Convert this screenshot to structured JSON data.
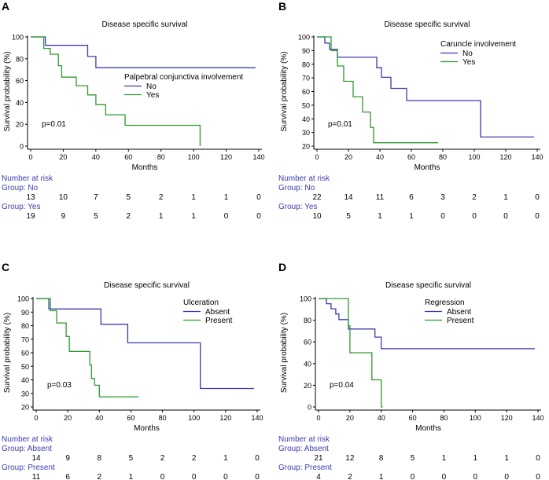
{
  "colors": {
    "group1": "#3b3bb0",
    "group2": "#2e9a2e",
    "risk_label": "#3b3bb0",
    "axis": "#000000"
  },
  "chart_data": [
    {
      "panel_label": "A",
      "type": "line",
      "title": "Disease specific survival",
      "xlabel": "Months",
      "ylabel": "Survival probability (%)",
      "xlim": [
        0,
        140
      ],
      "ylim": [
        0,
        100
      ],
      "x_ticks": [
        "0",
        "20",
        "40",
        "60",
        "80",
        "100",
        "120",
        "140"
      ],
      "y_ticks": [
        "0",
        "20",
        "40",
        "60",
        "80",
        "100"
      ],
      "legend_title": "Palpebral conjunctiva involvement",
      "p_value": "p=0.01",
      "series": [
        {
          "name": "No",
          "color": "#3b3bb0",
          "x": [
            0,
            9,
            9,
            35,
            35,
            40,
            40,
            138
          ],
          "y": [
            100,
            100,
            92.3,
            92.3,
            82.1,
            82.1,
            71.8,
            71.8
          ]
        },
        {
          "name": "Yes",
          "color": "#2e9a2e",
          "x": [
            0,
            8,
            8,
            12,
            12,
            17,
            17,
            19,
            19,
            28,
            28,
            35,
            35,
            40,
            40,
            46,
            46,
            58,
            58,
            104,
            104
          ],
          "y": [
            100,
            100,
            89.5,
            89.5,
            84.2,
            84.2,
            73.7,
            73.7,
            63.2,
            63.2,
            55.3,
            55.3,
            46.9,
            46.9,
            38.0,
            38.0,
            28.7,
            28.7,
            19.1,
            19.1,
            0
          ]
        }
      ],
      "risk_table": {
        "header": "Number at risk",
        "groups": [
          {
            "label": "Group: No",
            "values": [
              "13",
              "10",
              "7",
              "5",
              "2",
              "1",
              "1",
              "0"
            ]
          },
          {
            "label": "Group: Yes",
            "values": [
              "19",
              "9",
              "5",
              "2",
              "1",
              "1",
              "0",
              "0"
            ]
          }
        ]
      }
    },
    {
      "panel_label": "B",
      "type": "line",
      "title": "Disease specific survival",
      "xlabel": "Months",
      "ylabel": "Survival probability (%)",
      "xlim": [
        0,
        140
      ],
      "ylim": [
        20,
        100
      ],
      "x_ticks": [
        "0",
        "20",
        "40",
        "60",
        "80",
        "100",
        "120",
        "140"
      ],
      "y_ticks": [
        "20",
        "30",
        "40",
        "50",
        "60",
        "70",
        "80",
        "90",
        "100"
      ],
      "legend_title": "Caruncle involvement",
      "p_value": "p=0.01",
      "series": [
        {
          "name": "No",
          "color": "#3b3bb0",
          "x": [
            0,
            5,
            5,
            8,
            8,
            13,
            13,
            38,
            38,
            41,
            41,
            47,
            47,
            57,
            57,
            104,
            104,
            138
          ],
          "y": [
            100,
            100,
            95.5,
            95.5,
            90.9,
            90.9,
            85.1,
            85.1,
            77.4,
            77.4,
            70.4,
            70.4,
            62.3,
            62.3,
            53.4,
            53.4,
            26.7,
            26.7
          ]
        },
        {
          "name": "Yes",
          "color": "#2e9a2e",
          "x": [
            0,
            9,
            9,
            13,
            13,
            17,
            17,
            23,
            23,
            29,
            29,
            34,
            34,
            36,
            36,
            77
          ],
          "y": [
            100,
            100,
            90,
            90,
            78.7,
            78.7,
            67.5,
            67.5,
            56.2,
            56.2,
            45,
            45,
            33.7,
            33.7,
            22.5,
            22.5
          ]
        }
      ],
      "risk_table": {
        "header": "Number at risk",
        "groups": [
          {
            "label": "Group: No",
            "values": [
              "22",
              "14",
              "11",
              "6",
              "3",
              "2",
              "1",
              "0"
            ]
          },
          {
            "label": "Group: Yes",
            "values": [
              "10",
              "5",
              "1",
              "1",
              "0",
              "0",
              "0",
              "0"
            ]
          }
        ]
      }
    },
    {
      "panel_label": "C",
      "type": "line",
      "title": "Disease specific survival",
      "xlabel": "Months",
      "ylabel": "Survival probability (%)",
      "xlim": [
        0,
        140
      ],
      "ylim": [
        20,
        100
      ],
      "x_ticks": [
        "0",
        "20",
        "40",
        "60",
        "80",
        "100",
        "120",
        "140"
      ],
      "y_ticks": [
        "20",
        "30",
        "40",
        "50",
        "60",
        "70",
        "80",
        "90",
        "100"
      ],
      "legend_title": "Ulceration",
      "p_value": "p=0.03",
      "series": [
        {
          "name": "Absent",
          "color": "#3b3bb0",
          "x": [
            0,
            8,
            8,
            41,
            41,
            58,
            58,
            104,
            104,
            138
          ],
          "y": [
            100,
            100,
            92.3,
            92.3,
            81.0,
            81.0,
            67.3,
            67.3,
            33.6,
            33.6
          ]
        },
        {
          "name": "Present",
          "color": "#2e9a2e",
          "x": [
            0,
            9,
            9,
            13,
            13,
            19,
            19,
            21,
            21,
            34,
            34,
            35,
            35,
            37,
            37,
            40,
            40,
            65
          ],
          "y": [
            100,
            100,
            91,
            91,
            82,
            82,
            72,
            72,
            61,
            61,
            51,
            51,
            41,
            41,
            36,
            36,
            27.5,
            27.5
          ]
        }
      ],
      "risk_table": {
        "header": "Number at risk",
        "groups": [
          {
            "label": "Group: Absent",
            "values": [
              "14",
              "9",
              "8",
              "5",
              "2",
              "2",
              "1",
              "0"
            ]
          },
          {
            "label": "Group: Present",
            "values": [
              "11",
              "6",
              "2",
              "1",
              "0",
              "0",
              "0",
              "0"
            ]
          }
        ]
      }
    },
    {
      "panel_label": "D",
      "type": "line",
      "title": "Disease specific survival",
      "xlabel": "Months",
      "ylabel": "Survival probability (%)",
      "xlim": [
        0,
        140
      ],
      "ylim": [
        0,
        100
      ],
      "x_ticks": [
        "0",
        "20",
        "40",
        "60",
        "80",
        "100",
        "120",
        "140"
      ],
      "y_ticks": [
        "0",
        "20",
        "40",
        "60",
        "80",
        "100"
      ],
      "legend_title": "Regression",
      "p_value": "p=0.04",
      "series": [
        {
          "name": "Absent",
          "color": "#3b3bb0",
          "x": [
            0,
            5,
            5,
            8,
            8,
            11,
            11,
            13,
            13,
            19,
            19,
            36,
            36,
            40,
            40,
            57,
            57,
            138
          ],
          "y": [
            100,
            100,
            95.2,
            95.2,
            90.5,
            90.5,
            85.7,
            85.7,
            80.6,
            80.6,
            71.9,
            71.9,
            64.4,
            64.4,
            53.7,
            53.7,
            53.7,
            53.7
          ]
        },
        {
          "name": "Present",
          "color": "#2e9a2e",
          "x": [
            0,
            19,
            19,
            20,
            20,
            34,
            34,
            40,
            40,
            41,
            41
          ],
          "y": [
            100,
            100,
            75,
            75,
            50,
            50,
            25,
            25,
            0,
            0,
            0
          ]
        }
      ],
      "risk_table": {
        "header": "Number at risk",
        "groups": [
          {
            "label": "Group: Absent",
            "values": [
              "21",
              "12",
              "8",
              "5",
              "1",
              "1",
              "1",
              "0"
            ]
          },
          {
            "label": "Group: Present",
            "values": [
              "4",
              "2",
              "1",
              "0",
              "0",
              "0",
              "0",
              "0"
            ]
          }
        ]
      }
    }
  ]
}
